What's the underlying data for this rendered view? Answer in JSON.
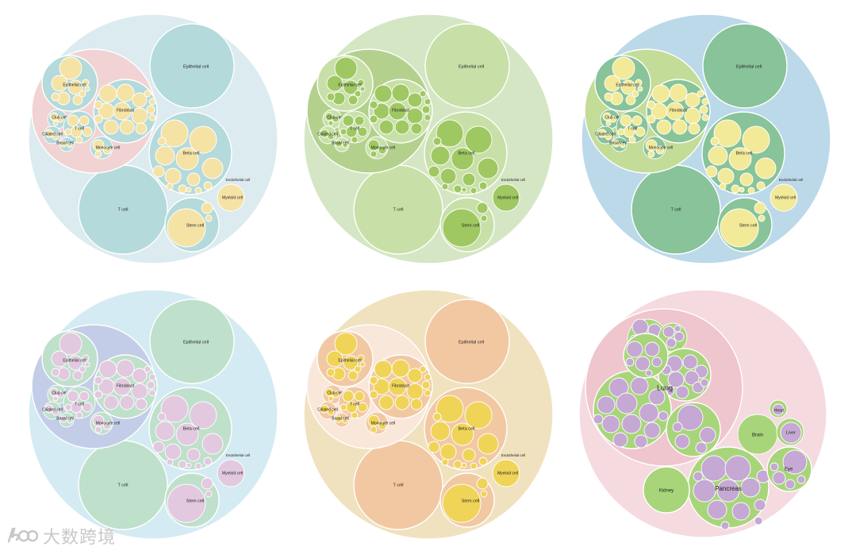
{
  "colors": {
    "p1": {
      "outer": "#dcebef",
      "mid": "#f1d3d3",
      "sub": "#b4dadb",
      "leaf": "#f5e3a6"
    },
    "p2": {
      "outer": "#d5e6c4",
      "mid": "#b3d18d",
      "sub": "#c8e0a8",
      "leaf": "#9fc862"
    },
    "p3": {
      "outer": "#bcd9ea",
      "mid": "#c3dc98",
      "sub": "#88c39a",
      "leaf": "#f2ea98"
    },
    "p4": {
      "outer": "#d5ebf3",
      "mid": "#c4cde7",
      "sub": "#bfe0cb",
      "leaf": "#e2c9df"
    },
    "p5": {
      "outer": "#f0e2be",
      "mid": "#f9e7da",
      "sub": "#f2c8a3",
      "leaf": "#efd457"
    },
    "p6": {
      "outer": "#f5dae0",
      "mid": "#efc5ce",
      "sub": "#a8d57a",
      "leaf": "#c5a8d3"
    }
  },
  "labels": {
    "epithelial": "Epithelial cell",
    "fibroblast": "Fibroblast",
    "t_cell": "T cell",
    "beta_cell": "Beta cell",
    "stem_cell": "Stem cell",
    "myeloid_cell": "Myeloid cell",
    "endothelial": "Endothelial cell",
    "club_cell": "Club cell",
    "ciliated_cell": "Ciliated cell",
    "basal_cell": "Basal cell",
    "monocyte_cell": "Monocyte cell",
    "stem_cell_5": "Stem cell",
    "lung": "Lung",
    "brain": "Brain",
    "liver": "Liver",
    "eye": "Eye",
    "kidney": "Kidney",
    "pancreas": "Pancreas",
    "heart": "Heart"
  },
  "watermark": {
    "text": "大数跨境",
    "icon": "brand-logo-icon"
  }
}
